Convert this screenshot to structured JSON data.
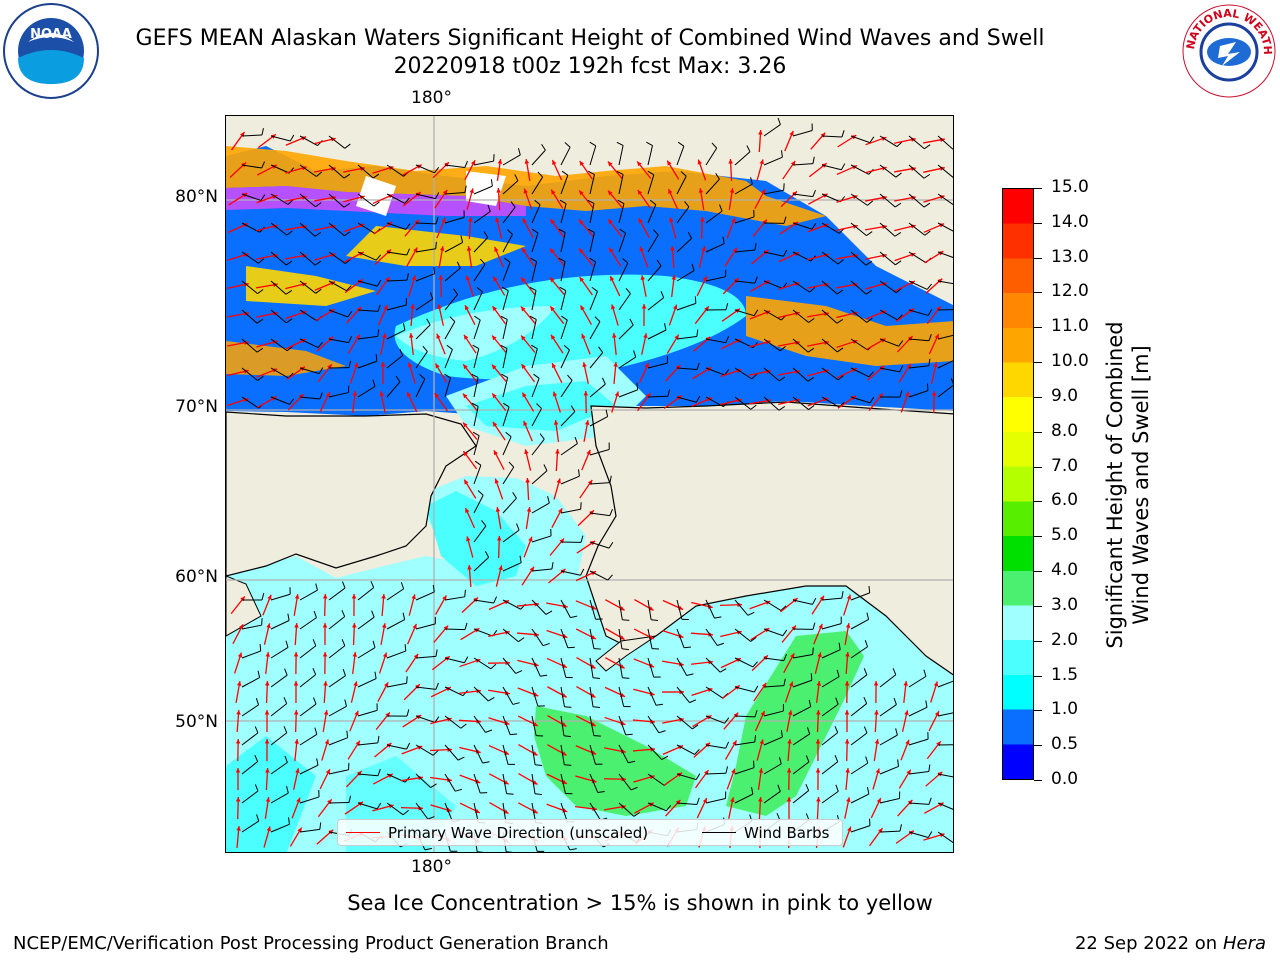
{
  "header": {
    "title_line1": "GEFS MEAN Alaskan Waters Significant Height of Combined Wind Waves and Swell",
    "title_line2": "20220918 t00z 192h fcst   Max: 3.26"
  },
  "logos": {
    "left": {
      "name": "noaa-logo",
      "text": "NOAA"
    },
    "right": {
      "name": "nws-logo",
      "text": "NATIONAL WEATHER SERVICE"
    }
  },
  "map": {
    "lat_labels": [
      "80°N",
      "70°N",
      "60°N",
      "50°N"
    ],
    "lon_label_top": "180°",
    "lon_label_bottom": "180°",
    "colors": {
      "land": "#efedde",
      "coast": "#000000",
      "arrow": "#ff0000",
      "barb": "#000000"
    }
  },
  "legend": {
    "primary_wave": "Primary Wave Direction (unscaled)",
    "wind_barbs": "Wind Barbs"
  },
  "colorbar": {
    "ticks": [
      "0.0",
      "0.5",
      "1.0",
      "1.5",
      "2.0",
      "3.0",
      "4.0",
      "5.0",
      "6.0",
      "7.0",
      "8.0",
      "9.0",
      "10.0",
      "11.0",
      "12.0",
      "13.0",
      "14.0",
      "15.0"
    ],
    "colors": [
      "#0000ff",
      "#0a6eff",
      "#00ffff",
      "#4cffff",
      "#a0ffff",
      "#4cf070",
      "#00e000",
      "#58ee00",
      "#b4ff00",
      "#e6ff00",
      "#ffff00",
      "#ffd700",
      "#ffa500",
      "#ff8800",
      "#ff5e00",
      "#ff3000",
      "#ff0000"
    ],
    "label_line1": "Significant Height of Combined",
    "label_line2": "Wind Waves and Swell [m]"
  },
  "note": "Sea Ice Concentration > 15% is shown in pink to yellow",
  "footer": {
    "left": "NCEP/EMC/Verification Post Processing Product Generation Branch",
    "right_date": "22 Sep 2022 on",
    "right_host": "Hera"
  }
}
